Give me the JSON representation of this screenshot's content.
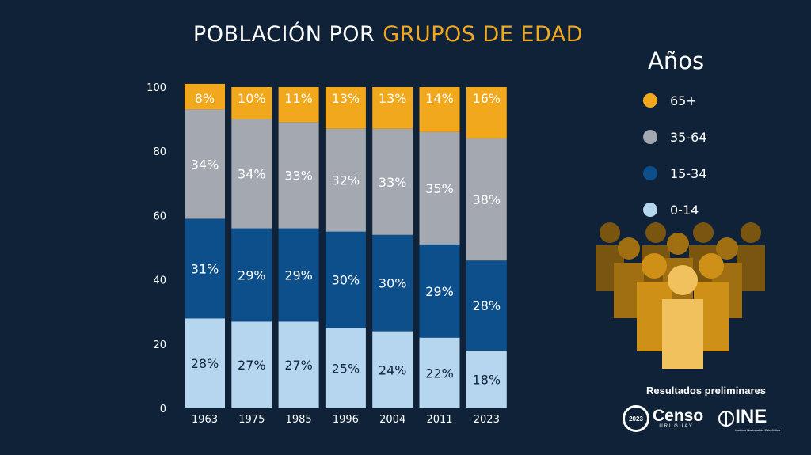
{
  "title": {
    "part1": "POBLACIÓN POR",
    "part2": "GRUPOS DE EDAD"
  },
  "legend": {
    "title": "Años",
    "items": [
      {
        "label": "65+",
        "color": "#f2a81d"
      },
      {
        "label": "35-64",
        "color": "#a3a8b1"
      },
      {
        "label": "15-34",
        "color": "#0d4f8b"
      },
      {
        "label": "0-14",
        "color": "#b6d6ef"
      }
    ]
  },
  "footer": {
    "preliminary": "Resultados preliminares",
    "censo_logo": "Censo",
    "censo_logo_sub": "URUGUAY",
    "censo_year": "2023",
    "ine_logo": "INE",
    "ine_logo_sub": "Instituto Nacional de Estadística"
  },
  "chart_data": {
    "type": "bar",
    "stacked": true,
    "categories": [
      "1963",
      "1975",
      "1985",
      "1996",
      "2004",
      "2011",
      "2023"
    ],
    "ylim": [
      0,
      100
    ],
    "yticks": [
      0,
      20,
      40,
      60,
      80,
      100
    ],
    "series": [
      {
        "name": "0-14",
        "color": "#b6d6ef",
        "label_color": "#10243a",
        "values": [
          28,
          27,
          27,
          25,
          24,
          22,
          18
        ]
      },
      {
        "name": "15-34",
        "color": "#0d4f8b",
        "label_color": "#ffffff",
        "values": [
          31,
          29,
          29,
          30,
          30,
          29,
          28
        ]
      },
      {
        "name": "35-64",
        "color": "#a3a8b1",
        "label_color": "#ffffff",
        "values": [
          34,
          34,
          33,
          32,
          33,
          35,
          38
        ]
      },
      {
        "name": "65+",
        "color": "#f2a81d",
        "label_color": "#ffffff",
        "values": [
          8,
          10,
          11,
          13,
          13,
          14,
          16
        ]
      }
    ]
  }
}
